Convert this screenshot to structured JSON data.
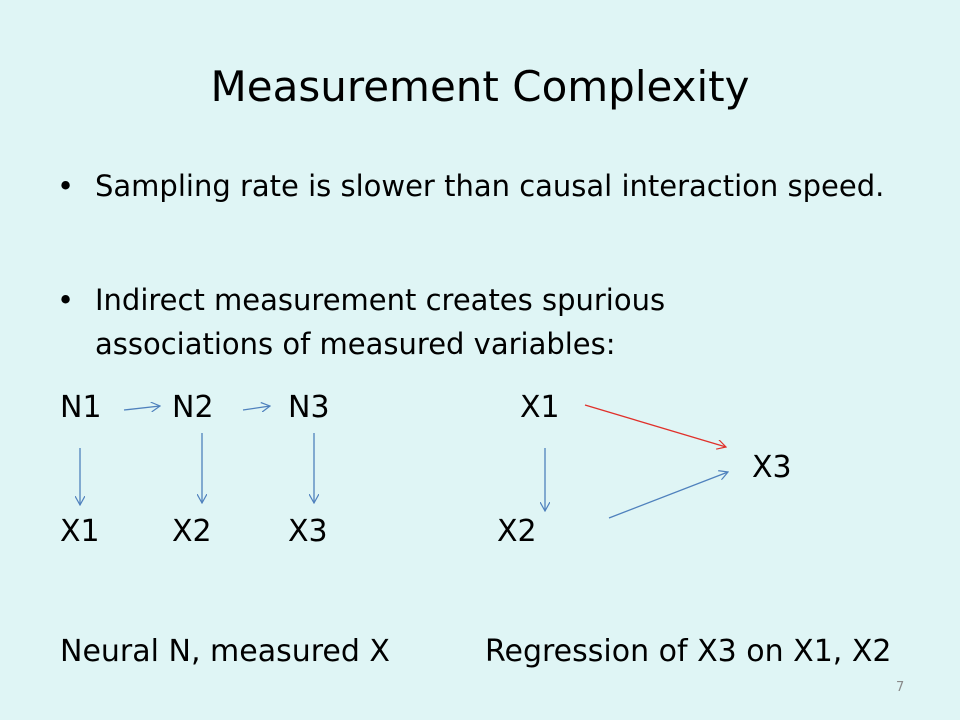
{
  "title": "Measurement Complexity",
  "bullets": [
    "Sampling rate is slower than causal interaction speed.",
    "Indirect measurement creates spurious associations of measured variables:"
  ],
  "diagram": {
    "left": {
      "top": [
        "N1",
        "N2",
        "N3"
      ],
      "bottom": [
        "X1",
        "X2",
        "X3"
      ]
    },
    "right": {
      "nodes": [
        "X1",
        "X3",
        "X2"
      ]
    }
  },
  "captions": [
    "Neural N, measured X",
    "Regression of X3 on X1, X2"
  ],
  "page_number": "7"
}
